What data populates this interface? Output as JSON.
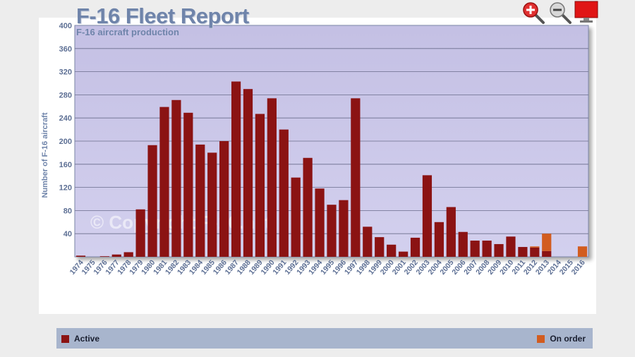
{
  "chart_data": {
    "type": "bar",
    "title": "F-16 Fleet Report",
    "subtitle": "F-16 aircraft production",
    "xlabel": "",
    "ylabel": "Number of F-16 aircraft",
    "ylim": [
      0,
      400
    ],
    "yticks": [
      40,
      80,
      120,
      160,
      200,
      240,
      280,
      320,
      360,
      400
    ],
    "grid": true,
    "legend_position": "bottom",
    "watermark": "© Copyright F-16.net",
    "categories": [
      "1974",
      "1975",
      "1976",
      "1977",
      "1978",
      "1979",
      "1980",
      "1981",
      "1982",
      "1983",
      "1984",
      "1985",
      "1986",
      "1987",
      "1988",
      "1989",
      "1990",
      "1991",
      "1992",
      "1993",
      "1994",
      "1995",
      "1996",
      "1997",
      "1998",
      "1999",
      "2000",
      "2001",
      "2002",
      "2003",
      "2004",
      "2005",
      "2006",
      "2007",
      "2008",
      "2009",
      "2010",
      "2011",
      "2012",
      "2013",
      "2014",
      "2015",
      "2016"
    ],
    "series": [
      {
        "name": "Active",
        "color": "#8b1313",
        "values": [
          2,
          0,
          1,
          4,
          8,
          82,
          193,
          259,
          271,
          249,
          194,
          180,
          200,
          303,
          290,
          247,
          274,
          220,
          137,
          171,
          118,
          90,
          98,
          274,
          52,
          34,
          21,
          9,
          33,
          141,
          60,
          86,
          43,
          28,
          28,
          22,
          35,
          17,
          16,
          10,
          0,
          0,
          0
        ]
      },
      {
        "name": "On order",
        "color": "#d25c1f",
        "values": [
          0,
          0,
          0,
          0,
          0,
          0,
          0,
          0,
          0,
          0,
          0,
          0,
          0,
          0,
          0,
          0,
          0,
          0,
          0,
          0,
          0,
          0,
          0,
          0,
          0,
          0,
          0,
          0,
          0,
          0,
          0,
          0,
          0,
          0,
          0,
          0,
          0,
          0,
          2,
          30,
          0,
          0,
          18
        ]
      }
    ]
  },
  "toolbar": {
    "zoom_in_icon": "zoom-in-icon",
    "zoom_out_icon": "zoom-out-icon",
    "screen_icon": "monitor-icon"
  },
  "legend": {
    "active_label": "Active",
    "on_order_label": "On order"
  }
}
